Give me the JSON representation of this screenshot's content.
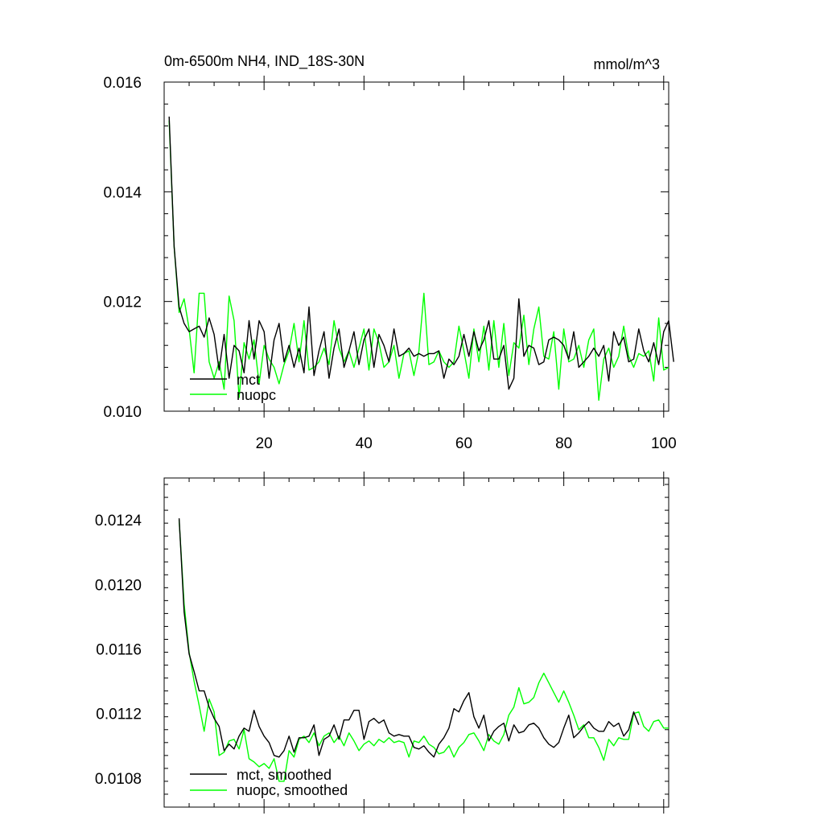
{
  "header": {
    "title": "0m-6500m NH4, IND_18S-30N",
    "units": "mmol/m^3"
  },
  "colors": {
    "mct": "#000000",
    "nuopc": "#00ff00"
  },
  "chart_data": [
    {
      "type": "line",
      "title": "0m-6500m NH4, IND_18S-30N",
      "units_label": "mmol/m^3",
      "xlabel": "",
      "ylabel": "",
      "xlim": [
        0,
        101
      ],
      "ylim": [
        0.01,
        0.016
      ],
      "x_ticks": [
        20,
        40,
        60,
        80,
        100
      ],
      "y_ticks": [
        "0.010",
        "0.012",
        "0.014",
        "0.016"
      ],
      "x_tick_labels_shown": true,
      "grid": false,
      "legend": "lower-left",
      "x_start": 1,
      "series": [
        {
          "name": "mct",
          "color": "#000000",
          "values": [
            0.01537,
            0.013,
            0.0119,
            0.0116,
            0.01145,
            0.0115,
            0.01155,
            0.01135,
            0.0117,
            0.0114,
            0.01075,
            0.0114,
            0.0106,
            0.0112,
            0.0111,
            0.0107,
            0.01165,
            0.01095,
            0.01165,
            0.01145,
            0.0106,
            0.0113,
            0.0116,
            0.0109,
            0.0112,
            0.0108,
            0.01115,
            0.0107,
            0.0119,
            0.01065,
            0.0111,
            0.01145,
            0.0106,
            0.01115,
            0.0115,
            0.0108,
            0.0111,
            0.01145,
            0.01085,
            0.0113,
            0.0115,
            0.0108,
            0.0114,
            0.0112,
            0.0109,
            0.0115,
            0.011,
            0.01105,
            0.01115,
            0.011,
            0.01105,
            0.011,
            0.01105,
            0.01105,
            0.0111,
            0.0106,
            0.01095,
            0.01085,
            0.011,
            0.0114,
            0.011,
            0.01145,
            0.0111,
            0.0113,
            0.01165,
            0.01095,
            0.01095,
            0.0112,
            0.0104,
            0.0106,
            0.01205,
            0.011,
            0.0112,
            0.01115,
            0.01085,
            0.0109,
            0.0113,
            0.01135,
            0.0113,
            0.0112,
            0.01095,
            0.01145,
            0.0108,
            0.0109,
            0.011,
            0.01115,
            0.011,
            0.0112,
            0.01055,
            0.01145,
            0.0112,
            0.01135,
            0.0109,
            0.01095,
            0.0115,
            0.0111,
            0.0109,
            0.01125,
            0.01085,
            0.01145,
            0.01165,
            0.0109
          ]
        },
        {
          "name": "nuopc",
          "color": "#00ff00",
          "values": [
            0.0153,
            0.013,
            0.0118,
            0.01205,
            0.0115,
            0.0107,
            0.01215,
            0.01215,
            0.0109,
            0.0106,
            0.0109,
            0.0104,
            0.0121,
            0.01165,
            0.01025,
            0.01125,
            0.01095,
            0.0113,
            0.0105,
            0.0112,
            0.01095,
            0.0108,
            0.0105,
            0.01085,
            0.0111,
            0.0116,
            0.0109,
            0.01165,
            0.01075,
            0.0108,
            0.0109,
            0.01115,
            0.01085,
            0.01165,
            0.01115,
            0.0109,
            0.0111,
            0.0108,
            0.01115,
            0.0115,
            0.01075,
            0.0115,
            0.01125,
            0.0108,
            0.0109,
            0.0112,
            0.0106,
            0.01105,
            0.0111,
            0.01065,
            0.0111,
            0.01215,
            0.01085,
            0.0109,
            0.0111,
            0.0109,
            0.0108,
            0.0109,
            0.01155,
            0.0111,
            0.0106,
            0.0115,
            0.0109,
            0.01155,
            0.01075,
            0.01165,
            0.0108,
            0.0116,
            0.01065,
            0.01125,
            0.01115,
            0.01175,
            0.01085,
            0.0115,
            0.0119,
            0.011,
            0.01095,
            0.01145,
            0.0104,
            0.0115,
            0.0109,
            0.01095,
            0.0112,
            0.0108,
            0.0113,
            0.0115,
            0.0102,
            0.01095,
            0.01115,
            0.0108,
            0.011,
            0.01155,
            0.011,
            0.0108,
            0.01105,
            0.011,
            0.0111,
            0.01055,
            0.0117,
            0.01075,
            0.0108
          ]
        }
      ]
    },
    {
      "type": "line",
      "title": "",
      "xlabel": "",
      "ylabel": "",
      "xlim": [
        0,
        101
      ],
      "ylim": [
        0.01062,
        0.01266
      ],
      "x_ticks": [
        20,
        40,
        60,
        80,
        100
      ],
      "y_ticks": [
        "0.0108",
        "0.0112",
        "0.0116",
        "0.0120",
        "0.0124"
      ],
      "x_tick_labels_shown": false,
      "grid": false,
      "legend": "lower-left",
      "x_start": 3,
      "series": [
        {
          "name": "mct, smoothed",
          "color": "#000000",
          "values": [
            0.01241,
            0.01183,
            0.01157,
            0.01146,
            0.01134,
            0.01134,
            0.01124,
            0.01117,
            0.01112,
            0.01097,
            0.01101,
            0.01098,
            0.01106,
            0.01111,
            0.01109,
            0.01122,
            0.01112,
            0.01106,
            0.01102,
            0.01094,
            0.01093,
            0.01097,
            0.01106,
            0.01096,
            0.01105,
            0.01105,
            0.01106,
            0.01113,
            0.01094,
            0.01104,
            0.01106,
            0.01113,
            0.01104,
            0.01116,
            0.01116,
            0.01122,
            0.01122,
            0.01104,
            0.01115,
            0.01117,
            0.01114,
            0.01116,
            0.01108,
            0.01106,
            0.01107,
            0.01106,
            0.01106,
            0.01099,
            0.01098,
            0.011,
            0.01096,
            0.01093,
            0.01101,
            0.01105,
            0.01111,
            0.01123,
            0.01121,
            0.01128,
            0.01133,
            0.01118,
            0.01111,
            0.01119,
            0.01103,
            0.01109,
            0.01112,
            0.01114,
            0.01103,
            0.01113,
            0.01108,
            0.01109,
            0.01113,
            0.01114,
            0.01111,
            0.01105,
            0.01101,
            0.01099,
            0.01102,
            0.01111,
            0.01119,
            0.01105,
            0.01108,
            0.01112,
            0.01115,
            0.01111,
            0.01109,
            0.01109,
            0.01115,
            0.01112,
            0.01114,
            0.01106,
            0.0111,
            0.01121,
            0.01113
          ]
        },
        {
          "name": "nuopc, smoothed",
          "color": "#00ff00",
          "values": [
            0.0124,
            0.01188,
            0.01158,
            0.0114,
            0.01125,
            0.01109,
            0.01129,
            0.01121,
            0.01094,
            0.01096,
            0.01103,
            0.01104,
            0.01098,
            0.0111,
            0.01092,
            0.0109,
            0.01087,
            0.01089,
            0.01086,
            0.01092,
            0.01078,
            0.01078,
            0.01097,
            0.01093,
            0.01104,
            0.01106,
            0.01102,
            0.01108,
            0.011,
            0.01106,
            0.01108,
            0.01102,
            0.01106,
            0.011,
            0.01108,
            0.01103,
            0.01097,
            0.01101,
            0.01103,
            0.011,
            0.01104,
            0.01102,
            0.01105,
            0.01102,
            0.01103,
            0.01102,
            0.01093,
            0.01103,
            0.01102,
            0.01106,
            0.01101,
            0.01099,
            0.01095,
            0.01096,
            0.011,
            0.01093,
            0.01099,
            0.01102,
            0.01107,
            0.01108,
            0.01103,
            0.01097,
            0.01107,
            0.01103,
            0.01101,
            0.01107,
            0.01119,
            0.01124,
            0.01136,
            0.01126,
            0.01127,
            0.0113,
            0.01139,
            0.01145,
            0.01139,
            0.01133,
            0.01127,
            0.01134,
            0.01127,
            0.01119,
            0.0111,
            0.01113,
            0.01105,
            0.01105,
            0.01099,
            0.01091,
            0.01104,
            0.011,
            0.01105,
            0.01104,
            0.01104,
            0.0112,
            0.01121,
            0.01112,
            0.01109,
            0.01115,
            0.01116,
            0.01111,
            0.01111
          ]
        }
      ]
    }
  ]
}
